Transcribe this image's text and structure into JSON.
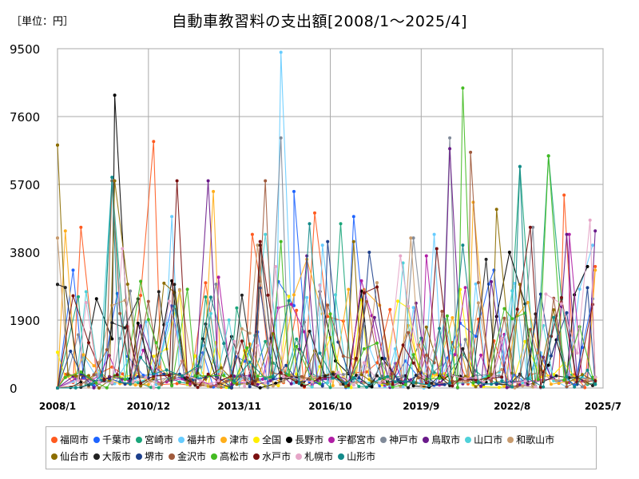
{
  "chart_data": {
    "type": "line",
    "unit_label": "［単位：円］",
    "title": "自動車教習料の支出額[2008/1～2025/4]",
    "xlabel": "",
    "ylabel": "",
    "ylim": [
      0,
      9500
    ],
    "yticks": [
      0,
      1900,
      3800,
      5700,
      7600,
      9500
    ],
    "xlim": [
      "2008/1",
      "2025/7"
    ],
    "xticks": [
      "2008/1",
      "2010/12",
      "2013/11",
      "2016/10",
      "2019/9",
      "2022/8",
      "2025/7"
    ],
    "grid": true,
    "legend_position": "bottom",
    "series": [
      {
        "name": "福岡市",
        "color": "#ff5a1f",
        "peaks": [
          [
            "2008/10",
            4500
          ],
          [
            "2011/2",
            6900
          ],
          [
            "2014/4",
            4300
          ],
          [
            "2016/4",
            4900
          ],
          [
            "2024/4",
            5400
          ],
          [
            "2025/4",
            3400
          ]
        ]
      },
      {
        "name": "千葉市",
        "color": "#1e64ff",
        "peaks": [
          [
            "2008/7",
            3300
          ],
          [
            "2015/8",
            5500
          ],
          [
            "2017/7",
            4800
          ],
          [
            "2022/1",
            3300
          ],
          [
            "2025/3",
            2500
          ]
        ]
      },
      {
        "name": "宮崎市",
        "color": "#1aa57a",
        "peaks": [
          [
            "2009/10",
            5800
          ],
          [
            "2017/2",
            4600
          ],
          [
            "2022/11",
            6200
          ],
          [
            "2023/10",
            6500
          ],
          [
            "2025/4",
            150
          ]
        ]
      },
      {
        "name": "福井市",
        "color": "#66ccff",
        "peaks": [
          [
            "2011/9",
            4800
          ],
          [
            "2015/3",
            9400
          ],
          [
            "2016/7",
            4000
          ],
          [
            "2020/2",
            4300
          ],
          [
            "2025/3",
            4000
          ]
        ]
      },
      {
        "name": "津市",
        "color": "#ffae1a",
        "peaks": [
          [
            "2008/4",
            4400
          ],
          [
            "2013/1",
            5500
          ],
          [
            "2016/1",
            3600
          ],
          [
            "2021/5",
            5200
          ],
          [
            "2025/4",
            3300
          ]
        ]
      },
      {
        "name": "全国",
        "color": "#ffee00",
        "peaks": [
          [
            "2008/1",
            1000
          ],
          [
            "2012/6",
            900
          ],
          [
            "2016/6",
            600
          ],
          [
            "2020/6",
            400
          ],
          [
            "2025/4",
            250
          ]
        ]
      },
      {
        "name": "長野市",
        "color": "#000000",
        "peaks": [
          [
            "2009/11",
            8200
          ],
          [
            "2011/9",
            3000
          ],
          [
            "2016/6",
            2700
          ],
          [
            "2022/7",
            3800
          ],
          [
            "2025/1",
            3400
          ]
        ]
      },
      {
        "name": "宇都宮市",
        "color": "#b01ea5",
        "peaks": [
          [
            "2013/3",
            3100
          ],
          [
            "2017/10",
            3000
          ],
          [
            "2019/11",
            3700
          ],
          [
            "2024/6",
            4300
          ],
          [
            "2025/4",
            200
          ]
        ]
      },
      {
        "name": "神戸市",
        "color": "#808a99",
        "peaks": [
          [
            "2015/3",
            7000
          ],
          [
            "2019/6",
            4200
          ],
          [
            "2020/8",
            7000
          ],
          [
            "2023/4",
            4500
          ],
          [
            "2025/4",
            300
          ]
        ]
      },
      {
        "name": "鳥取市",
        "color": "#6a1a8a",
        "peaks": [
          [
            "2012/11",
            5800
          ],
          [
            "2016/1",
            3700
          ],
          [
            "2020/8",
            6700
          ],
          [
            "2024/5",
            4300
          ],
          [
            "2025/4",
            4400
          ]
        ]
      },
      {
        "name": "山口市",
        "color": "#4fd1d9",
        "peaks": [
          [
            "2009/10",
            5900
          ],
          [
            "2014/9",
            4300
          ],
          [
            "2019/2",
            3500
          ],
          [
            "2025/4",
            200
          ]
        ]
      },
      {
        "name": "和歌山市",
        "color": "#c89b6e",
        "peaks": [
          [
            "2008/1",
            4200
          ],
          [
            "2014/6",
            4000
          ],
          [
            "2019/5",
            4200
          ],
          [
            "2025/4",
            300
          ]
        ]
      },
      {
        "name": "仙台市",
        "color": "#8c6d00",
        "peaks": [
          [
            "2008/1",
            6800
          ],
          [
            "2009/11",
            5800
          ],
          [
            "2017/7",
            4100
          ],
          [
            "2022/2",
            5000
          ],
          [
            "2025/4",
            200
          ]
        ]
      },
      {
        "name": "大阪市",
        "color": "#222222",
        "peaks": [
          [
            "2008/1",
            2900
          ],
          [
            "2011/10",
            2900
          ],
          [
            "2014/7",
            4000
          ],
          [
            "2021/10",
            3600
          ],
          [
            "2025/4",
            300
          ]
        ]
      },
      {
        "name": "堺市",
        "color": "#1c3f8c",
        "peaks": [
          [
            "2014/7",
            2800
          ],
          [
            "2016/9",
            4100
          ],
          [
            "2018/1",
            3800
          ],
          [
            "2025/4",
            100
          ]
        ]
      },
      {
        "name": "金沢市",
        "color": "#a05a3c",
        "peaks": [
          [
            "2009/10",
            5800
          ],
          [
            "2014/9",
            5800
          ],
          [
            "2021/4",
            6600
          ],
          [
            "2025/4",
            200
          ]
        ]
      },
      {
        "name": "高松市",
        "color": "#44bb22",
        "peaks": [
          [
            "2015/3",
            4100
          ],
          [
            "2021/1",
            8400
          ],
          [
            "2023/10",
            6500
          ],
          [
            "2025/4",
            100
          ]
        ]
      },
      {
        "name": "水戸市",
        "color": "#7a1010",
        "peaks": [
          [
            "2011/11",
            5800
          ],
          [
            "2014/7",
            4100
          ],
          [
            "2020/3",
            3900
          ],
          [
            "2023/3",
            4500
          ],
          [
            "2025/4",
            200
          ]
        ]
      },
      {
        "name": "札幌市",
        "color": "#e6a6c8",
        "peaks": [
          [
            "2010/2",
            3900
          ],
          [
            "2015/1",
            3400
          ],
          [
            "2019/1",
            3700
          ],
          [
            "2025/2",
            4700
          ],
          [
            "2025/4",
            300
          ]
        ]
      },
      {
        "name": "山形市",
        "color": "#138a8a",
        "peaks": [
          [
            "2009/10",
            5900
          ],
          [
            "2016/2",
            4600
          ],
          [
            "2021/1",
            4000
          ],
          [
            "2022/11",
            6200
          ],
          [
            "2025/4",
            100
          ]
        ]
      }
    ]
  }
}
